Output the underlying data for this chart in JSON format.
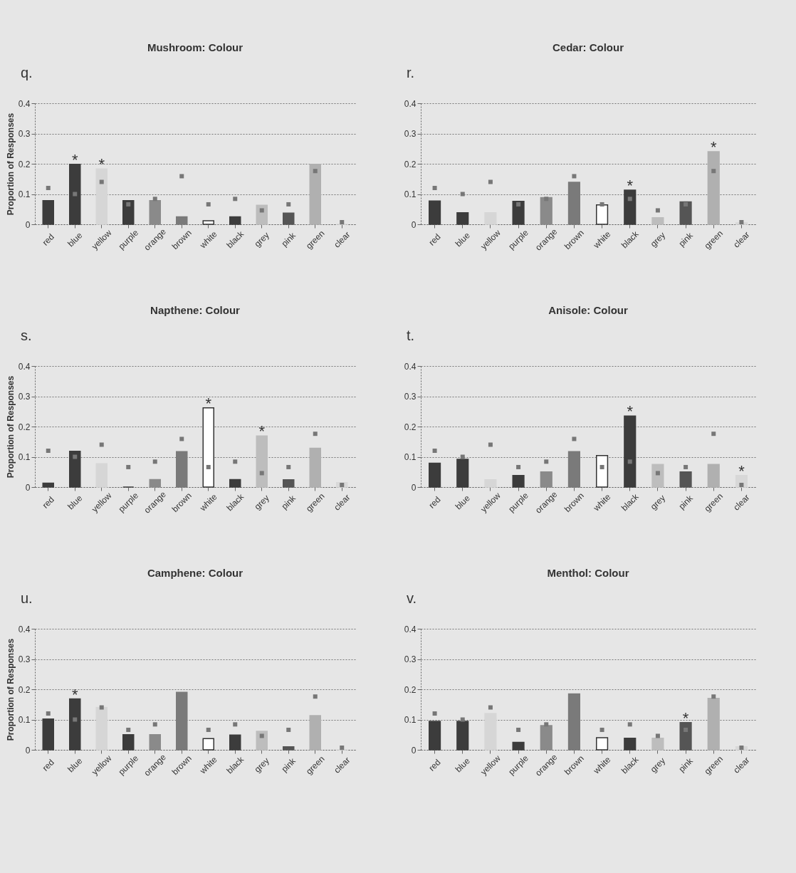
{
  "chart_data": [
    {
      "type": "bar",
      "marker": "square",
      "title": "Mushroom: Colour",
      "ylabel": "Proportion of Responses",
      "categories": [
        "red",
        "blue",
        "yellow",
        "purple",
        "orange",
        "brown",
        "white",
        "black",
        "grey",
        "pink",
        "green",
        "clear"
      ],
      "ylim": [
        0,
        0.4
      ],
      "yticks": [
        0,
        0.1,
        0.2,
        0.3,
        0.4
      ],
      "grid": "y",
      "annotations": [
        "q.",
        {
          "text": "*",
          "x": "blue",
          "y": 0.198
        },
        {
          "text": "*",
          "x": "yellow",
          "y": 0.183
        }
      ],
      "series": [
        {
          "type": "bar",
          "colors": [
            "#3c3c3c",
            "#3c3c3c",
            "#d6d6d6",
            "#3c3c3c",
            "#8a8a8a",
            "#7a7a7a",
            "#ffffff",
            "#3c3c3c",
            "#bdbdbd",
            "#555555",
            "#b0b0b0",
            "#d8d8d8"
          ],
          "values": [
            0.078,
            0.198,
            0.183,
            0.078,
            0.078,
            0.025,
            0.012,
            0.025,
            0.063,
            0.037,
            0.198,
            0
          ]
        },
        {
          "type": "scatter",
          "color": "#777777",
          "values": [
            0.12,
            0.1,
            0.14,
            0.066,
            0.084,
            0.159,
            0.066,
            0.084,
            0.046,
            0.066,
            0.176,
            0.007
          ]
        }
      ]
    },
    {
      "type": "bar",
      "marker": "square",
      "title": "Cedar: Colour",
      "categories": [
        "red",
        "blue",
        "yellow",
        "purple",
        "orange",
        "brown",
        "white",
        "black",
        "grey",
        "pink",
        "green",
        "clear"
      ],
      "ylim": [
        0,
        0.4
      ],
      "yticks": [
        0,
        0.1,
        0.2,
        0.3,
        0.4
      ],
      "grid": "y",
      "annotations": [
        "r.",
        {
          "text": "*",
          "x": "black",
          "y": 0.113
        },
        {
          "text": "*",
          "x": "green",
          "y": 0.24
        }
      ],
      "series": [
        {
          "type": "bar",
          "colors": [
            "#3c3c3c",
            "#3c3c3c",
            "#d6d6d6",
            "#3c3c3c",
            "#8a8a8a",
            "#7a7a7a",
            "#ffffff",
            "#3c3c3c",
            "#bdbdbd",
            "#555555",
            "#b0b0b0",
            "#d8d8d8"
          ],
          "values": [
            0.077,
            0.038,
            0.038,
            0.076,
            0.088,
            0.139,
            0.064,
            0.113,
            0.022,
            0.074,
            0.24,
            0.005
          ]
        },
        {
          "type": "scatter",
          "color": "#777777",
          "values": [
            0.12,
            0.1,
            0.14,
            0.066,
            0.084,
            0.159,
            0.066,
            0.084,
            0.046,
            0.066,
            0.176,
            0.007
          ]
        }
      ]
    },
    {
      "type": "bar",
      "marker": "square",
      "title": "Napthene: Colour",
      "ylabel": "Proportion of Responses",
      "categories": [
        "red",
        "blue",
        "yellow",
        "purple",
        "orange",
        "brown",
        "white",
        "black",
        "grey",
        "pink",
        "green",
        "clear"
      ],
      "ylim": [
        0,
        0.4
      ],
      "yticks": [
        0,
        0.1,
        0.2,
        0.3,
        0.4
      ],
      "grid": "y",
      "annotations": [
        "s.",
        {
          "text": "*",
          "x": "white",
          "y": 0.262
        },
        {
          "text": "*",
          "x": "grey",
          "y": 0.169
        }
      ],
      "series": [
        {
          "type": "bar",
          "colors": [
            "#3c3c3c",
            "#3c3c3c",
            "#d6d6d6",
            "#3c3c3c",
            "#8a8a8a",
            "#7a7a7a",
            "#ffffff",
            "#3c3c3c",
            "#bdbdbd",
            "#555555",
            "#b0b0b0",
            "#d8d8d8"
          ],
          "values": [
            0.013,
            0.118,
            0.077,
            0,
            0.025,
            0.117,
            0.262,
            0.025,
            0.169,
            0.024,
            0.128,
            0.015
          ]
        },
        {
          "type": "scatter",
          "color": "#777777",
          "values": [
            0.12,
            0.1,
            0.14,
            0.066,
            0.084,
            0.159,
            0.066,
            0.084,
            0.046,
            0.066,
            0.176,
            0.007
          ]
        }
      ]
    },
    {
      "type": "bar",
      "marker": "square",
      "title": "Anisole: Colour",
      "categories": [
        "red",
        "blue",
        "yellow",
        "purple",
        "orange",
        "brown",
        "white",
        "black",
        "grey",
        "pink",
        "green",
        "clear"
      ],
      "ylim": [
        0,
        0.4
      ],
      "yticks": [
        0,
        0.1,
        0.2,
        0.3,
        0.4
      ],
      "grid": "y",
      "annotations": [
        "t.",
        {
          "text": "*",
          "x": "black",
          "y": 0.235
        },
        {
          "text": "*",
          "x": "clear",
          "y": 0.038
        }
      ],
      "series": [
        {
          "type": "bar",
          "colors": [
            "#3c3c3c",
            "#3c3c3c",
            "#d6d6d6",
            "#3c3c3c",
            "#8a8a8a",
            "#7a7a7a",
            "#ffffff",
            "#3c3c3c",
            "#bdbdbd",
            "#555555",
            "#b0b0b0",
            "#d8d8d8"
          ],
          "values": [
            0.079,
            0.092,
            0.024,
            0.038,
            0.05,
            0.117,
            0.104,
            0.235,
            0.075,
            0.05,
            0.075,
            0.038
          ]
        },
        {
          "type": "scatter",
          "color": "#777777",
          "values": [
            0.12,
            0.1,
            0.14,
            0.066,
            0.084,
            0.159,
            0.066,
            0.084,
            0.046,
            0.066,
            0.176,
            0.007
          ]
        }
      ]
    },
    {
      "type": "bar",
      "marker": "square",
      "title": "Camphene: Colour",
      "ylabel": "Proportion of Responses",
      "categories": [
        "red",
        "blue",
        "yellow",
        "purple",
        "orange",
        "brown",
        "white",
        "black",
        "grey",
        "pink",
        "green",
        "clear"
      ],
      "ylim": [
        0,
        0.4
      ],
      "yticks": [
        0,
        0.1,
        0.2,
        0.3,
        0.4
      ],
      "grid": "y",
      "annotations": [
        "u.",
        {
          "text": "*",
          "x": "blue",
          "y": 0.168
        }
      ],
      "series": [
        {
          "type": "bar",
          "colors": [
            "#3c3c3c",
            "#3c3c3c",
            "#d6d6d6",
            "#3c3c3c",
            "#8a8a8a",
            "#7a7a7a",
            "#ffffff",
            "#3c3c3c",
            "#bdbdbd",
            "#555555",
            "#b0b0b0",
            "#d8d8d8"
          ],
          "values": [
            0.102,
            0.168,
            0.14,
            0.05,
            0.05,
            0.19,
            0.037,
            0.049,
            0.061,
            0.01,
            0.113,
            0
          ]
        },
        {
          "type": "scatter",
          "color": "#777777",
          "values": [
            0.12,
            0.1,
            0.14,
            0.066,
            0.084,
            null,
            0.066,
            0.084,
            0.046,
            0.066,
            0.176,
            0.007
          ]
        }
      ]
    },
    {
      "type": "bar",
      "marker": "square",
      "title": "Menthol: Colour",
      "categories": [
        "red",
        "blue",
        "yellow",
        "purple",
        "orange",
        "brown",
        "white",
        "black",
        "grey",
        "pink",
        "green",
        "clear"
      ],
      "ylim": [
        0,
        0.4
      ],
      "yticks": [
        0,
        0.1,
        0.2,
        0.3,
        0.4
      ],
      "grid": "y",
      "annotations": [
        "v.",
        {
          "text": "*",
          "x": "pink",
          "y": 0.09
        }
      ],
      "series": [
        {
          "type": "bar",
          "colors": [
            "#3c3c3c",
            "#3c3c3c",
            "#d6d6d6",
            "#3c3c3c",
            "#8a8a8a",
            "#7a7a7a",
            "#ffffff",
            "#3c3c3c",
            "#bdbdbd",
            "#555555",
            "#b0b0b0",
            "#d8d8d8"
          ],
          "values": [
            0.094,
            0.094,
            0.12,
            0.025,
            0.08,
            0.185,
            0.04,
            0.038,
            0.038,
            0.09,
            0.17,
            0.01
          ]
        },
        {
          "type": "scatter",
          "color": "#777777",
          "values": [
            0.12,
            0.1,
            0.14,
            0.066,
            0.084,
            null,
            0.066,
            0.084,
            0.046,
            0.066,
            0.176,
            0.007
          ]
        }
      ]
    }
  ]
}
